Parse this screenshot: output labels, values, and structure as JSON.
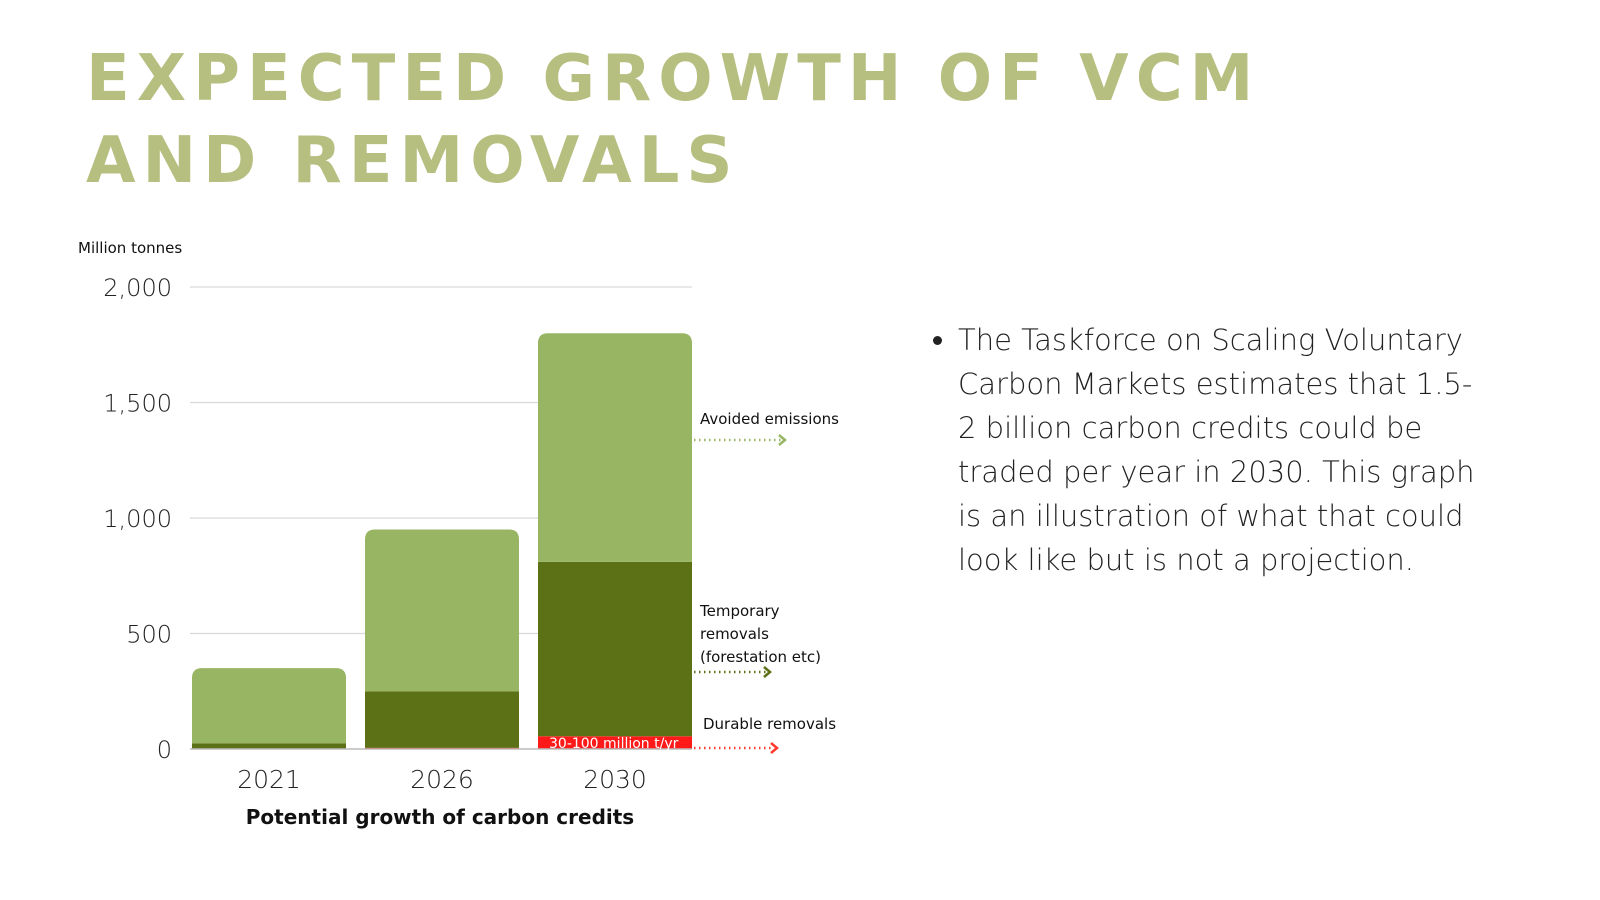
{
  "title": "EXPECTED GROWTH OF VCM AND REMOVALS",
  "bullets": [
    "The Taskforce on Scaling Voluntary Carbon Markets estimates that 1.5-2 billion carbon credits could be traded per year in 2030. This graph is an illustration of what that could look like but is not a projection."
  ],
  "chart_data": {
    "type": "bar",
    "stacked": true,
    "title": "Potential growth of carbon credits",
    "xlabel": "Potential growth of carbon credits",
    "ylabel": "Million tonnes",
    "ylim": [
      0,
      2000
    ],
    "yticks": [
      0,
      500,
      1000,
      1500,
      2000
    ],
    "ytick_labels": [
      "0",
      "500",
      "1,000",
      "1,500",
      "2,000"
    ],
    "grid": true,
    "categories": [
      "2021",
      "2026",
      "2030"
    ],
    "series": [
      {
        "name": "Durable removals",
        "color": "#ff1a1a",
        "values": [
          0,
          5,
          55
        ]
      },
      {
        "name": "Temporary removals (forestation etc)",
        "color": "#5c7115",
        "values": [
          25,
          245,
          755
        ]
      },
      {
        "name": "Avoided emissions",
        "color": "#97b562",
        "values": [
          325,
          700,
          990
        ]
      }
    ],
    "annotations": {
      "avoided": "Avoided emissions",
      "temporary": [
        "Temporary",
        "removals",
        "(forestation etc)"
      ],
      "durable": "Durable removals",
      "durable_range": "30-100 million t/yr"
    }
  }
}
